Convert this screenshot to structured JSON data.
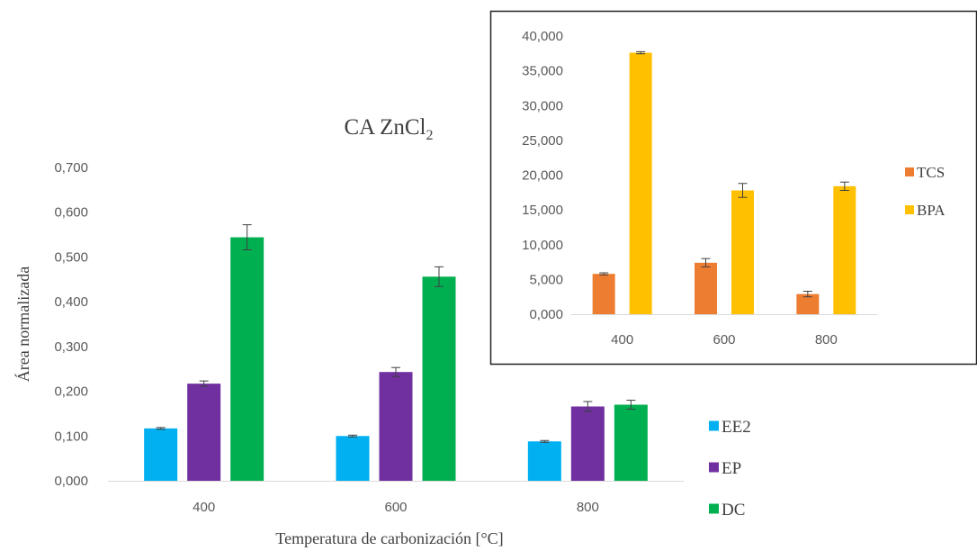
{
  "chart_data": [
    {
      "type": "bar",
      "title": "CA ZnCl",
      "title_subscript": "2",
      "xlabel": "Temperatura de carbonización [°C]",
      "ylabel": "Área normalizada",
      "categories": [
        "400",
        "600",
        "800"
      ],
      "ylim": [
        0,
        0.7
      ],
      "yticks": [
        "0,000",
        "0,100",
        "0,200",
        "0,300",
        "0,400",
        "0,500",
        "0,600",
        "0,700"
      ],
      "grid": false,
      "legend_position": "bottom-right",
      "series": [
        {
          "name": "EE2",
          "color": "#00B0F0",
          "values": [
            0.117,
            0.1,
            0.088
          ],
          "errors": [
            0.002,
            0.002,
            0.002
          ]
        },
        {
          "name": "EP",
          "color": "#7030A0",
          "values": [
            0.217,
            0.243,
            0.166
          ],
          "errors": [
            0.006,
            0.01,
            0.011
          ]
        },
        {
          "name": "DC",
          "color": "#00B050",
          "values": [
            0.544,
            0.456,
            0.17
          ],
          "errors": [
            0.028,
            0.022,
            0.01
          ]
        }
      ]
    },
    {
      "type": "bar",
      "title": "",
      "xlabel": "",
      "ylabel": "",
      "categories": [
        "400",
        "600",
        "800"
      ],
      "ylim": [
        0,
        40
      ],
      "yticks": [
        "0,000",
        "5,000",
        "10,000",
        "15,000",
        "20,000",
        "25,000",
        "30,000",
        "35,000",
        "40,000"
      ],
      "grid": false,
      "legend_position": "right",
      "series": [
        {
          "name": "TCS",
          "color": "#ED7D31",
          "values": [
            5.8,
            7.4,
            2.9
          ],
          "errors": [
            0.15,
            0.6,
            0.4
          ]
        },
        {
          "name": "BPA",
          "color": "#FFC000",
          "values": [
            37.6,
            17.8,
            18.4
          ],
          "errors": [
            0.15,
            1.0,
            0.6
          ]
        }
      ]
    }
  ]
}
